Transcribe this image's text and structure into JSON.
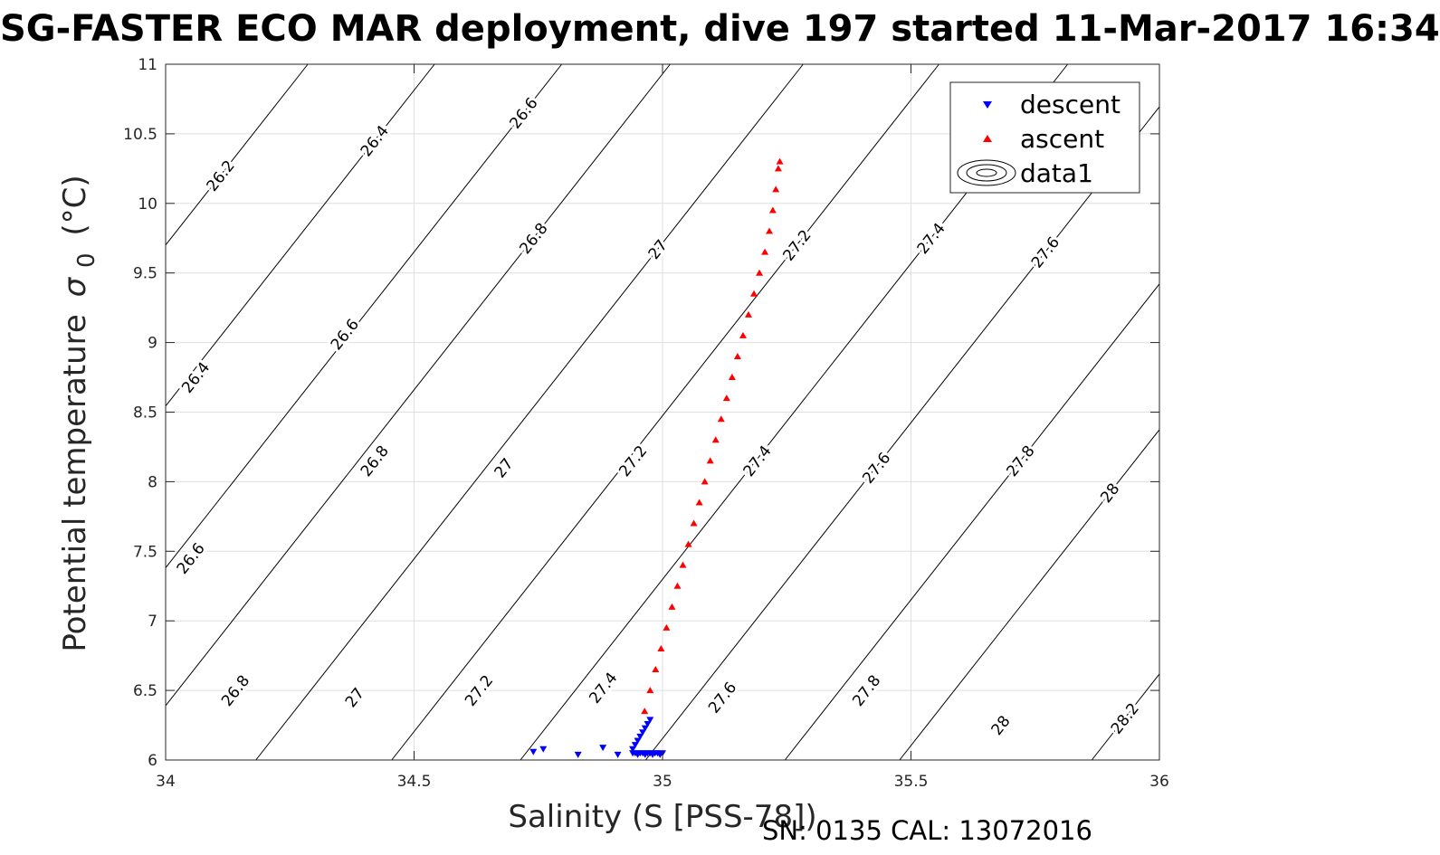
{
  "chart_data": {
    "type": "scatter",
    "title": "SG-FASTER ECO MAR deployment, dive 197 started 11-Mar-2017 16:34",
    "xlabel": "Salinity (S [PSS-78])",
    "ylabel": "Potential temperature",
    "ylabel_symbol": "σ",
    "ylabel_subscript": "0",
    "ylabel_unit": "(°C)",
    "xlim": [
      34,
      36
    ],
    "ylim": [
      6,
      11
    ],
    "xticks": [
      "34",
      "34.5",
      "35",
      "35.5",
      "36"
    ],
    "yticks": [
      "6",
      "6.5",
      "7",
      "7.5",
      "8",
      "8.5",
      "9",
      "9.5",
      "10",
      "10.5",
      "11"
    ],
    "grid": true,
    "legend_position": "top-right",
    "legend": [
      "descent",
      "ascent",
      "data1"
    ],
    "series": [
      {
        "name": "descent",
        "marker": "triangle-down",
        "color": "#0000ff",
        "points": [
          [
            34.74,
            6.06
          ],
          [
            34.76,
            6.08
          ],
          [
            34.83,
            6.04
          ],
          [
            34.88,
            6.09
          ],
          [
            34.91,
            6.04
          ],
          [
            34.94,
            6.05
          ],
          [
            34.945,
            6.05
          ],
          [
            34.95,
            6.04
          ],
          [
            34.955,
            6.05
          ],
          [
            34.96,
            6.05
          ],
          [
            34.965,
            6.04
          ],
          [
            34.97,
            6.05
          ],
          [
            34.975,
            6.05
          ],
          [
            34.98,
            6.04
          ],
          [
            34.985,
            6.05
          ],
          [
            34.99,
            6.05
          ],
          [
            34.995,
            6.04
          ],
          [
            35.0,
            6.05
          ],
          [
            34.94,
            6.08
          ],
          [
            34.945,
            6.11
          ],
          [
            34.95,
            6.14
          ],
          [
            34.955,
            6.17
          ],
          [
            34.96,
            6.2
          ],
          [
            34.965,
            6.23
          ],
          [
            34.97,
            6.26
          ],
          [
            34.975,
            6.29
          ]
        ]
      },
      {
        "name": "ascent",
        "marker": "triangle-up",
        "color": "#ff0000",
        "points": [
          [
            34.964,
            6.35
          ],
          [
            34.975,
            6.5
          ],
          [
            34.986,
            6.65
          ],
          [
            34.997,
            6.8
          ],
          [
            35.008,
            6.95
          ],
          [
            35.019,
            7.1
          ],
          [
            35.03,
            7.25
          ],
          [
            35.041,
            7.4
          ],
          [
            35.052,
            7.55
          ],
          [
            35.063,
            7.7
          ],
          [
            35.074,
            7.85
          ],
          [
            35.085,
            8.0
          ],
          [
            35.096,
            8.15
          ],
          [
            35.107,
            8.3
          ],
          [
            35.118,
            8.45
          ],
          [
            35.129,
            8.6
          ],
          [
            35.14,
            8.75
          ],
          [
            35.151,
            8.9
          ],
          [
            35.162,
            9.05
          ],
          [
            35.173,
            9.2
          ],
          [
            35.184,
            9.35
          ],
          [
            35.195,
            9.5
          ],
          [
            35.206,
            9.65
          ],
          [
            35.215,
            9.8
          ],
          [
            35.222,
            9.95
          ],
          [
            35.228,
            10.1
          ],
          [
            35.233,
            10.25
          ],
          [
            35.236,
            10.3
          ]
        ]
      }
    ],
    "contours": [
      {
        "level": "26.2",
        "labels": [
          [
            34.11,
            10.2
          ]
        ]
      },
      {
        "level": "26.4",
        "labels": [
          [
            34.42,
            10.45
          ],
          [
            34.06,
            8.75
          ]
        ]
      },
      {
        "level": "26.6",
        "labels": [
          [
            34.72,
            10.65
          ],
          [
            34.36,
            9.06
          ],
          [
            34.05,
            7.45
          ]
        ]
      },
      {
        "level": "26.8",
        "labels": [
          [
            34.74,
            9.75
          ],
          [
            34.42,
            8.15
          ],
          [
            34.14,
            6.5
          ]
        ]
      },
      {
        "level": "27",
        "labels": [
          [
            34.99,
            9.67
          ],
          [
            34.68,
            8.1
          ],
          [
            34.38,
            6.45
          ]
        ]
      },
      {
        "level": "27.2",
        "labels": [
          [
            35.27,
            9.7
          ],
          [
            34.94,
            8.15
          ],
          [
            34.63,
            6.5
          ]
        ]
      },
      {
        "level": "27.4",
        "labels": [
          [
            35.54,
            9.75
          ],
          [
            35.19,
            8.15
          ],
          [
            34.88,
            6.52
          ]
        ]
      },
      {
        "level": "27.6",
        "labels": [
          [
            35.77,
            9.65
          ],
          [
            35.43,
            8.1
          ],
          [
            35.12,
            6.45
          ]
        ]
      },
      {
        "level": "27.8",
        "labels": [
          [
            35.72,
            8.15
          ],
          [
            35.41,
            6.5
          ]
        ]
      },
      {
        "level": "28",
        "labels": [
          [
            35.9,
            7.92
          ],
          [
            35.68,
            6.25
          ]
        ]
      },
      {
        "level": "28.2",
        "labels": [
          [
            35.93,
            6.3
          ]
        ]
      }
    ]
  },
  "footer": {
    "serial_text": "SN: 0135  CAL: 13072016"
  }
}
